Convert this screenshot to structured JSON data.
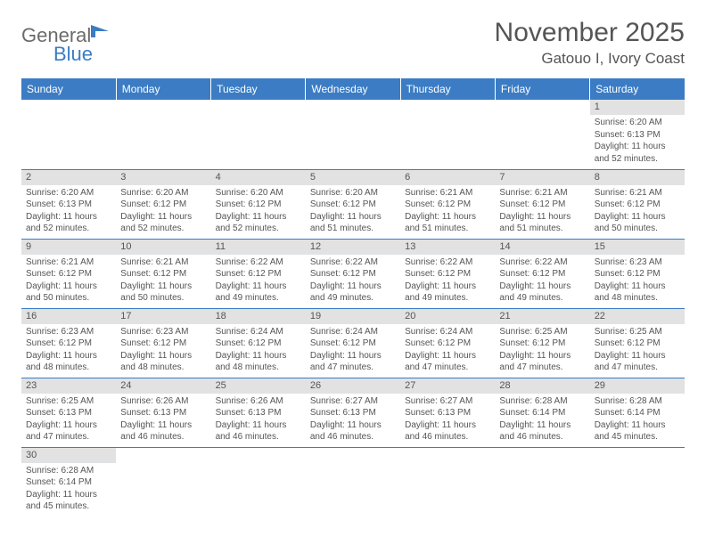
{
  "logo": {
    "general": "General",
    "blue": "Blue"
  },
  "title": "November 2025",
  "location": "Gatouo I, Ivory Coast",
  "colors": {
    "header_bg": "#3b7cc4",
    "header_text": "#ffffff",
    "daynum_bg": "#e2e2e2",
    "text": "#555555",
    "border": "#3b7cc4"
  },
  "day_headers": [
    "Sunday",
    "Monday",
    "Tuesday",
    "Wednesday",
    "Thursday",
    "Friday",
    "Saturday"
  ],
  "weeks": [
    [
      null,
      null,
      null,
      null,
      null,
      null,
      {
        "n": "1",
        "sunrise": "6:20 AM",
        "sunset": "6:13 PM",
        "daylight": "11 hours and 52 minutes."
      }
    ],
    [
      {
        "n": "2",
        "sunrise": "6:20 AM",
        "sunset": "6:13 PM",
        "daylight": "11 hours and 52 minutes."
      },
      {
        "n": "3",
        "sunrise": "6:20 AM",
        "sunset": "6:12 PM",
        "daylight": "11 hours and 52 minutes."
      },
      {
        "n": "4",
        "sunrise": "6:20 AM",
        "sunset": "6:12 PM",
        "daylight": "11 hours and 52 minutes."
      },
      {
        "n": "5",
        "sunrise": "6:20 AM",
        "sunset": "6:12 PM",
        "daylight": "11 hours and 51 minutes."
      },
      {
        "n": "6",
        "sunrise": "6:21 AM",
        "sunset": "6:12 PM",
        "daylight": "11 hours and 51 minutes."
      },
      {
        "n": "7",
        "sunrise": "6:21 AM",
        "sunset": "6:12 PM",
        "daylight": "11 hours and 51 minutes."
      },
      {
        "n": "8",
        "sunrise": "6:21 AM",
        "sunset": "6:12 PM",
        "daylight": "11 hours and 50 minutes."
      }
    ],
    [
      {
        "n": "9",
        "sunrise": "6:21 AM",
        "sunset": "6:12 PM",
        "daylight": "11 hours and 50 minutes."
      },
      {
        "n": "10",
        "sunrise": "6:21 AM",
        "sunset": "6:12 PM",
        "daylight": "11 hours and 50 minutes."
      },
      {
        "n": "11",
        "sunrise": "6:22 AM",
        "sunset": "6:12 PM",
        "daylight": "11 hours and 49 minutes."
      },
      {
        "n": "12",
        "sunrise": "6:22 AM",
        "sunset": "6:12 PM",
        "daylight": "11 hours and 49 minutes."
      },
      {
        "n": "13",
        "sunrise": "6:22 AM",
        "sunset": "6:12 PM",
        "daylight": "11 hours and 49 minutes."
      },
      {
        "n": "14",
        "sunrise": "6:22 AM",
        "sunset": "6:12 PM",
        "daylight": "11 hours and 49 minutes."
      },
      {
        "n": "15",
        "sunrise": "6:23 AM",
        "sunset": "6:12 PM",
        "daylight": "11 hours and 48 minutes."
      }
    ],
    [
      {
        "n": "16",
        "sunrise": "6:23 AM",
        "sunset": "6:12 PM",
        "daylight": "11 hours and 48 minutes."
      },
      {
        "n": "17",
        "sunrise": "6:23 AM",
        "sunset": "6:12 PM",
        "daylight": "11 hours and 48 minutes."
      },
      {
        "n": "18",
        "sunrise": "6:24 AM",
        "sunset": "6:12 PM",
        "daylight": "11 hours and 48 minutes."
      },
      {
        "n": "19",
        "sunrise": "6:24 AM",
        "sunset": "6:12 PM",
        "daylight": "11 hours and 47 minutes."
      },
      {
        "n": "20",
        "sunrise": "6:24 AM",
        "sunset": "6:12 PM",
        "daylight": "11 hours and 47 minutes."
      },
      {
        "n": "21",
        "sunrise": "6:25 AM",
        "sunset": "6:12 PM",
        "daylight": "11 hours and 47 minutes."
      },
      {
        "n": "22",
        "sunrise": "6:25 AM",
        "sunset": "6:12 PM",
        "daylight": "11 hours and 47 minutes."
      }
    ],
    [
      {
        "n": "23",
        "sunrise": "6:25 AM",
        "sunset": "6:13 PM",
        "daylight": "11 hours and 47 minutes."
      },
      {
        "n": "24",
        "sunrise": "6:26 AM",
        "sunset": "6:13 PM",
        "daylight": "11 hours and 46 minutes."
      },
      {
        "n": "25",
        "sunrise": "6:26 AM",
        "sunset": "6:13 PM",
        "daylight": "11 hours and 46 minutes."
      },
      {
        "n": "26",
        "sunrise": "6:27 AM",
        "sunset": "6:13 PM",
        "daylight": "11 hours and 46 minutes."
      },
      {
        "n": "27",
        "sunrise": "6:27 AM",
        "sunset": "6:13 PM",
        "daylight": "11 hours and 46 minutes."
      },
      {
        "n": "28",
        "sunrise": "6:28 AM",
        "sunset": "6:14 PM",
        "daylight": "11 hours and 46 minutes."
      },
      {
        "n": "29",
        "sunrise": "6:28 AM",
        "sunset": "6:14 PM",
        "daylight": "11 hours and 45 minutes."
      }
    ],
    [
      {
        "n": "30",
        "sunrise": "6:28 AM",
        "sunset": "6:14 PM",
        "daylight": "11 hours and 45 minutes."
      },
      null,
      null,
      null,
      null,
      null,
      null
    ]
  ],
  "labels": {
    "sunrise": "Sunrise: ",
    "sunset": "Sunset: ",
    "daylight": "Daylight: "
  }
}
